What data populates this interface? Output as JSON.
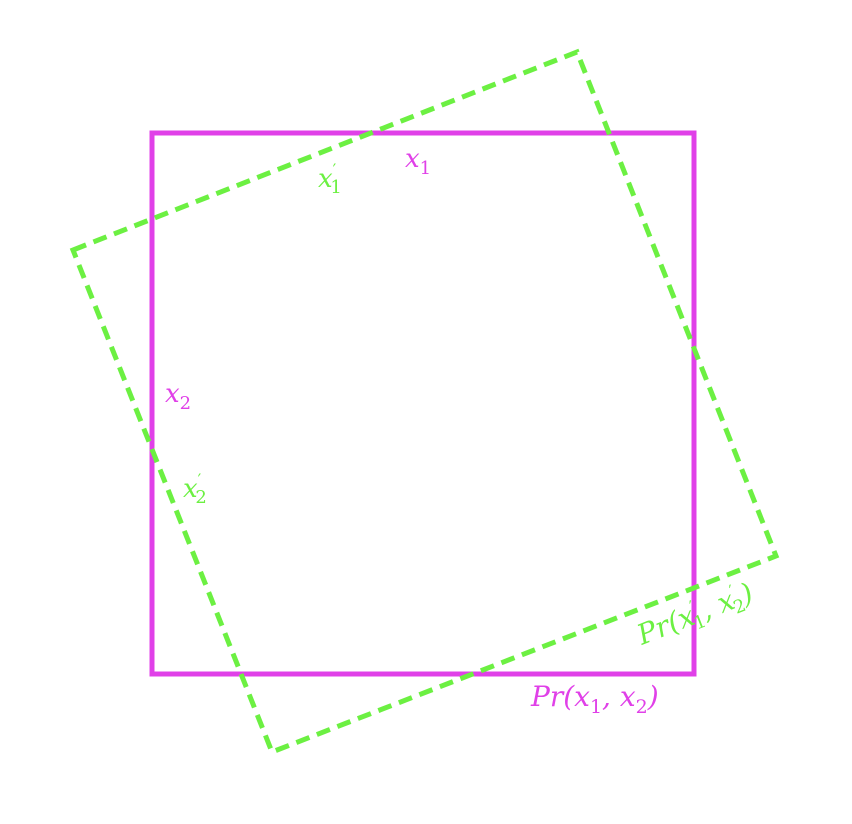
{
  "colors": {
    "background": "#ffffff",
    "original": "#e040e8",
    "rotated": "#6cf042"
  },
  "original_frame": {
    "label_x1": {
      "base": "x",
      "sub": "1"
    },
    "label_x2": {
      "base": "x",
      "sub": "2"
    },
    "label_distribution": {
      "prefix": "Pr(",
      "base1": "x",
      "sub1": "1",
      "sep": ", ",
      "base2": "x",
      "sub2": "2",
      "suffix": ")"
    }
  },
  "rotated_frame": {
    "label_x1": {
      "base": "x",
      "prime": "′",
      "sub": "1"
    },
    "label_x2": {
      "base": "x",
      "prime": "′",
      "sub": "2"
    },
    "label_distribution": {
      "prefix": "Pr(",
      "base1": "x",
      "prime1": "′",
      "sub1": "1",
      "sep": ", ",
      "base2": "x",
      "prime2": "′",
      "sub2": "2",
      "suffix": ")"
    }
  }
}
